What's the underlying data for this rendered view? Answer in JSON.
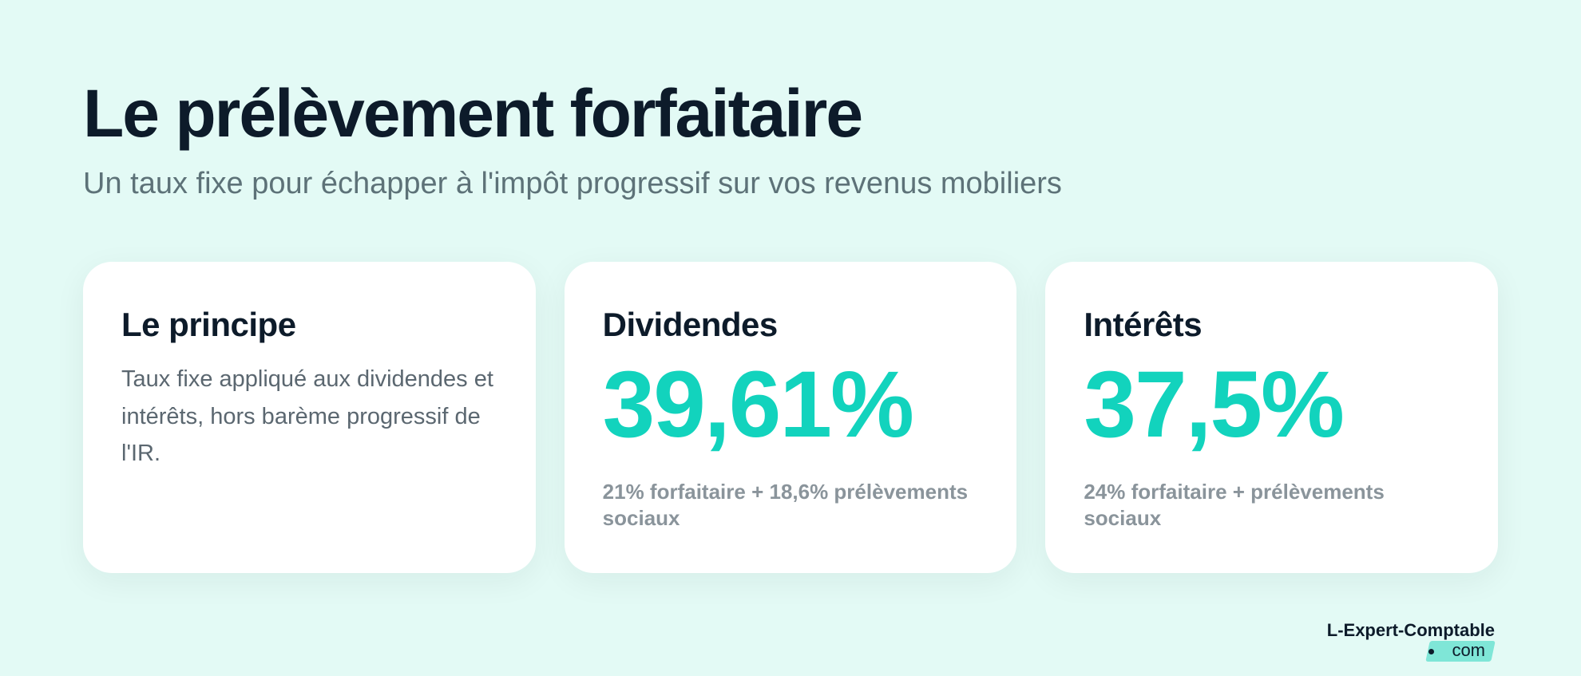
{
  "header": {
    "title": "Le prélèvement forfaitaire",
    "subtitle": "Un taux fixe pour échapper à l'impôt progressif sur vos revenus mobiliers"
  },
  "cards": {
    "principle": {
      "title": "Le principe",
      "body": "Taux fixe appliqué aux dividendes et intérêts, hors barème progressif de l'IR."
    },
    "dividends": {
      "title": "Dividendes",
      "value": "39,61%",
      "note": "21% forfaitaire + 18,6% prélèvements sociaux"
    },
    "interests": {
      "title": "Intérêts",
      "value": "37,5%",
      "note": "24% forfaitaire + prélèvements sociaux"
    }
  },
  "logo": {
    "name": "L-Expert-Comptable",
    "tld": "com"
  },
  "colors": {
    "background": "#e3faf5",
    "accent": "#12d3bd",
    "heading": "#0d1b2a",
    "muted": "#5d7278"
  }
}
